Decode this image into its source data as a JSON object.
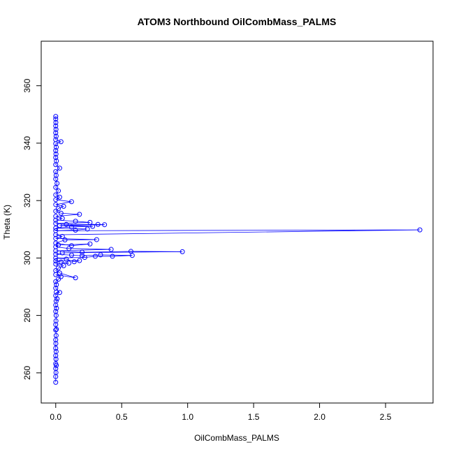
{
  "chart_data": {
    "type": "scatter",
    "title": "ATOM3 Northbound OilCombMass_PALMS",
    "xlabel": "OilCombMass_PALMS",
    "ylabel": "Theta (K)",
    "xlim": [
      -0.11,
      2.86
    ],
    "ylim": [
      249.5,
      375.5
    ],
    "xticks": [
      0.0,
      0.5,
      1.0,
      1.5,
      2.0,
      2.5
    ],
    "xtick_labels": [
      "0.0",
      "0.5",
      "1.0",
      "1.5",
      "2.0",
      "2.5"
    ],
    "yticks": [
      260,
      280,
      300,
      320,
      340,
      360
    ],
    "ytick_labels": [
      "260",
      "280",
      "300",
      "320",
      "340",
      "360"
    ],
    "grid": false,
    "color": "#0000ff",
    "marker": "open-circle",
    "connected": true,
    "series": [
      {
        "points": [
          [
            0.0,
            256.7
          ],
          [
            0.0,
            258.7
          ],
          [
            0.002,
            260.1
          ],
          [
            0.0,
            261.5
          ],
          [
            0.004,
            262.6
          ],
          [
            0.0,
            263.2
          ],
          [
            0.002,
            264.8
          ],
          [
            0.0,
            266.0
          ],
          [
            0.003,
            267.4
          ],
          [
            0.0,
            268.6
          ],
          [
            0.001,
            270.2
          ],
          [
            0.0,
            271.5
          ],
          [
            0.003,
            273.0
          ],
          [
            0.0,
            274.9
          ],
          [
            0.005,
            275.2
          ],
          [
            0.0,
            276.8
          ],
          [
            0.002,
            278.1
          ],
          [
            0.003,
            280.0
          ],
          [
            0.0,
            281.4
          ],
          [
            0.006,
            282.5
          ],
          [
            0.0,
            283.6
          ],
          [
            0.003,
            285.0
          ],
          [
            0.01,
            285.8
          ],
          [
            0.0,
            286.9
          ],
          [
            0.004,
            288.1
          ],
          [
            0.03,
            288.0
          ],
          [
            0.0,
            289.5
          ],
          [
            0.005,
            290.7
          ],
          [
            0.0,
            291.8
          ],
          [
            0.02,
            292.6
          ],
          [
            0.04,
            293.5
          ],
          [
            0.0,
            294.2
          ],
          [
            0.15,
            293.1
          ],
          [
            0.03,
            294.8
          ],
          [
            0.0,
            295.6
          ],
          [
            0.02,
            296.5
          ],
          [
            0.06,
            297.3
          ],
          [
            0.0,
            297.9
          ],
          [
            0.1,
            298.2
          ],
          [
            0.04,
            298.6
          ],
          [
            0.0,
            299.0
          ],
          [
            0.18,
            299.1
          ],
          [
            0.14,
            298.7
          ],
          [
            0.08,
            299.6
          ],
          [
            0.0,
            300.0
          ],
          [
            0.22,
            300.2
          ],
          [
            0.3,
            300.6
          ],
          [
            0.43,
            300.6
          ],
          [
            0.58,
            300.9
          ],
          [
            0.34,
            301.1
          ],
          [
            0.2,
            300.8
          ],
          [
            0.12,
            301.0
          ],
          [
            0.0,
            301.3
          ],
          [
            0.05,
            301.8
          ],
          [
            0.96,
            302.2
          ],
          [
            0.57,
            302.3
          ],
          [
            0.2,
            302.0
          ],
          [
            0.0,
            302.5
          ],
          [
            0.42,
            303.0
          ],
          [
            0.1,
            303.3
          ],
          [
            0.0,
            303.9
          ],
          [
            0.02,
            304.5
          ],
          [
            0.26,
            304.9
          ],
          [
            0.12,
            304.3
          ],
          [
            0.0,
            305.2
          ],
          [
            0.07,
            306.3
          ],
          [
            0.31,
            306.4
          ],
          [
            0.0,
            306.8
          ],
          [
            0.05,
            307.5
          ],
          [
            0.0,
            308.1
          ],
          [
            2.76,
            309.8
          ],
          [
            0.0,
            309.5
          ],
          [
            0.15,
            309.7
          ],
          [
            0.24,
            310.1
          ],
          [
            0.0,
            310.4
          ],
          [
            0.12,
            310.8
          ],
          [
            0.28,
            311.0
          ],
          [
            0.03,
            311.3
          ],
          [
            0.37,
            311.6
          ],
          [
            0.32,
            311.7
          ],
          [
            0.08,
            311.7
          ],
          [
            0.0,
            312.0
          ],
          [
            0.26,
            312.4
          ],
          [
            0.15,
            312.8
          ],
          [
            0.0,
            313.2
          ],
          [
            0.05,
            313.8
          ],
          [
            0.0,
            314.5
          ],
          [
            0.18,
            315.2
          ],
          [
            0.04,
            315.6
          ],
          [
            0.0,
            316.3
          ],
          [
            0.02,
            317.2
          ],
          [
            0.06,
            318.0
          ],
          [
            0.0,
            318.6
          ],
          [
            0.12,
            319.6
          ],
          [
            0.0,
            320.3
          ],
          [
            0.03,
            321.2
          ],
          [
            0.0,
            322.0
          ],
          [
            0.02,
            323.4
          ],
          [
            0.0,
            324.6
          ],
          [
            0.01,
            326.0
          ],
          [
            0.0,
            327.5
          ],
          [
            0.003,
            328.8
          ],
          [
            0.0,
            330.1
          ],
          [
            0.03,
            331.3
          ],
          [
            0.0,
            332.5
          ],
          [
            0.005,
            333.8
          ],
          [
            0.0,
            335.0
          ],
          [
            0.002,
            336.2
          ],
          [
            0.0,
            337.4
          ],
          [
            0.004,
            338.6
          ],
          [
            0.0,
            339.8
          ],
          [
            0.04,
            340.5
          ],
          [
            0.0,
            341.2
          ],
          [
            0.003,
            342.4
          ],
          [
            0.0,
            343.6
          ],
          [
            0.002,
            344.8
          ],
          [
            0.0,
            346.0
          ],
          [
            0.001,
            347.2
          ],
          [
            0.0,
            348.4
          ],
          [
            0.0,
            349.3
          ]
        ]
      }
    ]
  }
}
